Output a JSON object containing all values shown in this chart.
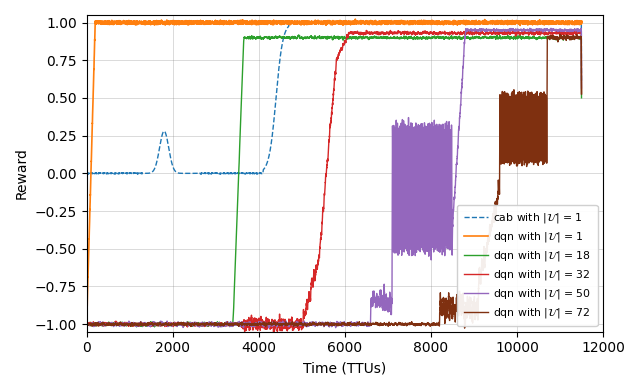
{
  "xlabel": "Time (TTUs)",
  "ylabel": "Reward",
  "xlim": [
    0,
    12000
  ],
  "ylim": [
    -1.05,
    1.05
  ],
  "xticks": [
    0,
    2000,
    4000,
    6000,
    8000,
    10000,
    12000
  ],
  "yticks": [
    -1.0,
    -0.75,
    -0.5,
    -0.25,
    0.0,
    0.25,
    0.5,
    0.75,
    1.0
  ],
  "figsize": [
    6.4,
    3.9
  ],
  "dpi": 100,
  "legend_entries": [
    {
      "label": "cab with $|\\mathcal{U}|$ = 1",
      "color": "#1f77b4",
      "linestyle": "--"
    },
    {
      "label": "dqn with $|\\mathcal{U}|$ = 1",
      "color": "#ff7f0e",
      "linestyle": "-"
    },
    {
      "label": "dqn with $|\\mathcal{U}|$ = 18",
      "color": "#2ca02c",
      "linestyle": "-"
    },
    {
      "label": "dqn with $|\\mathcal{U}|$ = 32",
      "color": "#d62728",
      "linestyle": "-"
    },
    {
      "label": "dqn with $|\\mathcal{U}|$ = 50",
      "color": "#9467bd",
      "linestyle": "-"
    },
    {
      "label": "dqn with $|\\mathcal{U}|$ = 72",
      "color": "#7f3010",
      "linestyle": "-"
    }
  ],
  "seed": 42
}
